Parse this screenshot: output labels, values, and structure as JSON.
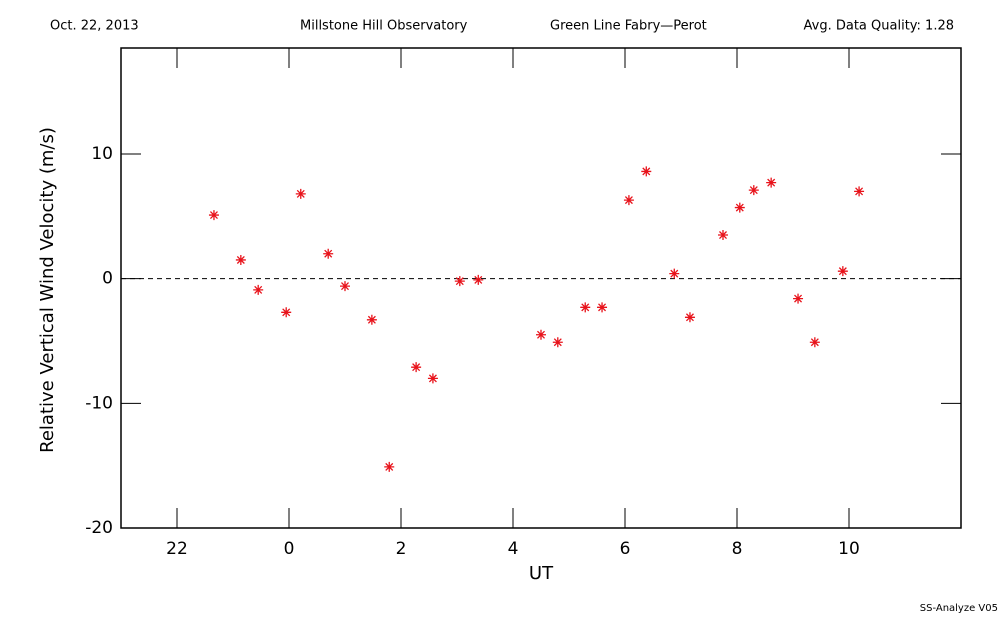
{
  "chart_data": {
    "type": "scatter",
    "header": [
      "Oct. 22, 2013",
      "Millstone Hill Observatory",
      "Green Line Fabry—Perot",
      "Avg. Data Quality: 1.28"
    ],
    "footer": "SS-Analyze V05",
    "x_label": "UT",
    "y_label": "Relative Vertical Wind Velocity (m/s)",
    "color": "#e8131b",
    "reference_line": 0,
    "xlim": [
      21,
      36
    ],
    "ylim": [
      -20,
      18.5
    ],
    "xticks": [
      {
        "value": 22,
        "label": "22"
      },
      {
        "value": 24,
        "label": "0"
      },
      {
        "value": 26,
        "label": "2"
      },
      {
        "value": 28,
        "label": "4"
      },
      {
        "value": 30,
        "label": "6"
      },
      {
        "value": 32,
        "label": "8"
      },
      {
        "value": 34,
        "label": "10"
      }
    ],
    "yticks": [
      -20,
      -10,
      0,
      10
    ],
    "x": [
      22.66,
      23.14,
      23.45,
      23.95,
      24.21,
      24.7,
      25.0,
      25.48,
      25.79,
      26.27,
      26.57,
      27.05,
      27.38,
      28.5,
      28.8,
      29.29,
      29.59,
      30.07,
      30.38,
      30.88,
      31.16,
      31.75,
      32.05,
      32.3,
      32.61,
      33.09,
      33.39,
      33.89,
      34.18
    ],
    "values": [
      5.1,
      1.5,
      -0.9,
      -2.7,
      6.8,
      2.0,
      -0.6,
      -3.3,
      -15.1,
      -7.1,
      -8.0,
      -0.2,
      -0.1,
      -4.5,
      -5.1,
      -2.3,
      -2.3,
      6.3,
      8.6,
      0.4,
      -3.1,
      3.5,
      5.7,
      7.1,
      7.7,
      -1.6,
      -5.1,
      0.6,
      7.0
    ]
  }
}
